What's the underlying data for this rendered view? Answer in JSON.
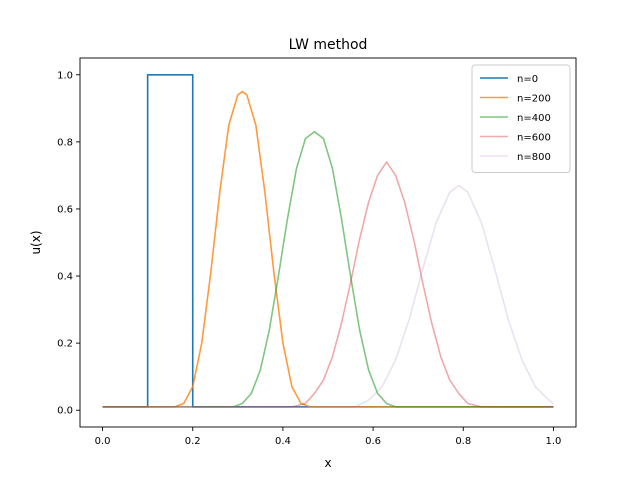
{
  "chart_data": {
    "type": "line",
    "title": "LW method",
    "xlabel": "x",
    "ylabel": "u(x)",
    "xlim": [
      -0.05,
      1.05
    ],
    "ylim": [
      -0.05,
      1.05
    ],
    "xticks": [
      0.0,
      0.2,
      0.4,
      0.6,
      0.8,
      1.0
    ],
    "xtick_labels": [
      "0.0",
      "0.2",
      "0.4",
      "0.6",
      "0.8",
      "1.0"
    ],
    "yticks": [
      0.0,
      0.2,
      0.4,
      0.6,
      0.8,
      1.0
    ],
    "ytick_labels": [
      "0.0",
      "0.2",
      "0.4",
      "0.6",
      "0.8",
      "1.0"
    ],
    "grid": false,
    "legend_position": "top-right",
    "series": [
      {
        "name": "n=0",
        "color": "#1f77b4",
        "opacity": 1.0,
        "x": [
          0.0,
          0.1,
          0.1,
          0.2,
          0.2,
          1.0
        ],
        "y": [
          0.01,
          0.01,
          1.0,
          1.0,
          0.01,
          0.01
        ]
      },
      {
        "name": "n=200",
        "color": "#ff7f0e",
        "opacity": 0.8,
        "x": [
          0.0,
          0.16,
          0.18,
          0.2,
          0.22,
          0.24,
          0.26,
          0.28,
          0.3,
          0.31,
          0.32,
          0.34,
          0.36,
          0.38,
          0.4,
          0.42,
          0.44,
          0.46,
          1.0
        ],
        "y": [
          0.01,
          0.01,
          0.02,
          0.07,
          0.2,
          0.41,
          0.65,
          0.85,
          0.94,
          0.95,
          0.94,
          0.85,
          0.65,
          0.41,
          0.2,
          0.07,
          0.02,
          0.01,
          0.01
        ]
      },
      {
        "name": "n=400",
        "color": "#2ca02c",
        "opacity": 0.6,
        "x": [
          0.0,
          0.29,
          0.31,
          0.33,
          0.35,
          0.37,
          0.39,
          0.41,
          0.43,
          0.45,
          0.47,
          0.49,
          0.51,
          0.53,
          0.55,
          0.57,
          0.59,
          0.61,
          0.63,
          0.65,
          1.0
        ],
        "y": [
          0.01,
          0.01,
          0.02,
          0.05,
          0.12,
          0.24,
          0.4,
          0.57,
          0.72,
          0.81,
          0.83,
          0.81,
          0.72,
          0.57,
          0.4,
          0.24,
          0.12,
          0.05,
          0.02,
          0.01,
          0.01
        ]
      },
      {
        "name": "n=600",
        "color": "#d62728",
        "opacity": 0.4,
        "x": [
          0.0,
          0.42,
          0.45,
          0.47,
          0.49,
          0.51,
          0.53,
          0.55,
          0.57,
          0.59,
          0.61,
          0.63,
          0.65,
          0.67,
          0.69,
          0.71,
          0.73,
          0.75,
          0.77,
          0.79,
          0.81,
          0.84,
          1.0
        ],
        "y": [
          0.01,
          0.01,
          0.02,
          0.05,
          0.09,
          0.16,
          0.26,
          0.38,
          0.51,
          0.62,
          0.7,
          0.74,
          0.7,
          0.62,
          0.51,
          0.38,
          0.26,
          0.16,
          0.09,
          0.05,
          0.02,
          0.01,
          0.01
        ]
      },
      {
        "name": "n=800",
        "color": "#9467bd",
        "opacity": 0.2,
        "x": [
          0.0,
          0.56,
          0.59,
          0.62,
          0.65,
          0.68,
          0.71,
          0.74,
          0.77,
          0.79,
          0.81,
          0.84,
          0.87,
          0.9,
          0.93,
          0.96,
          0.99,
          1.0
        ],
        "y": [
          0.01,
          0.01,
          0.03,
          0.07,
          0.15,
          0.27,
          0.42,
          0.56,
          0.65,
          0.67,
          0.65,
          0.56,
          0.42,
          0.27,
          0.15,
          0.07,
          0.03,
          0.02
        ]
      }
    ]
  }
}
